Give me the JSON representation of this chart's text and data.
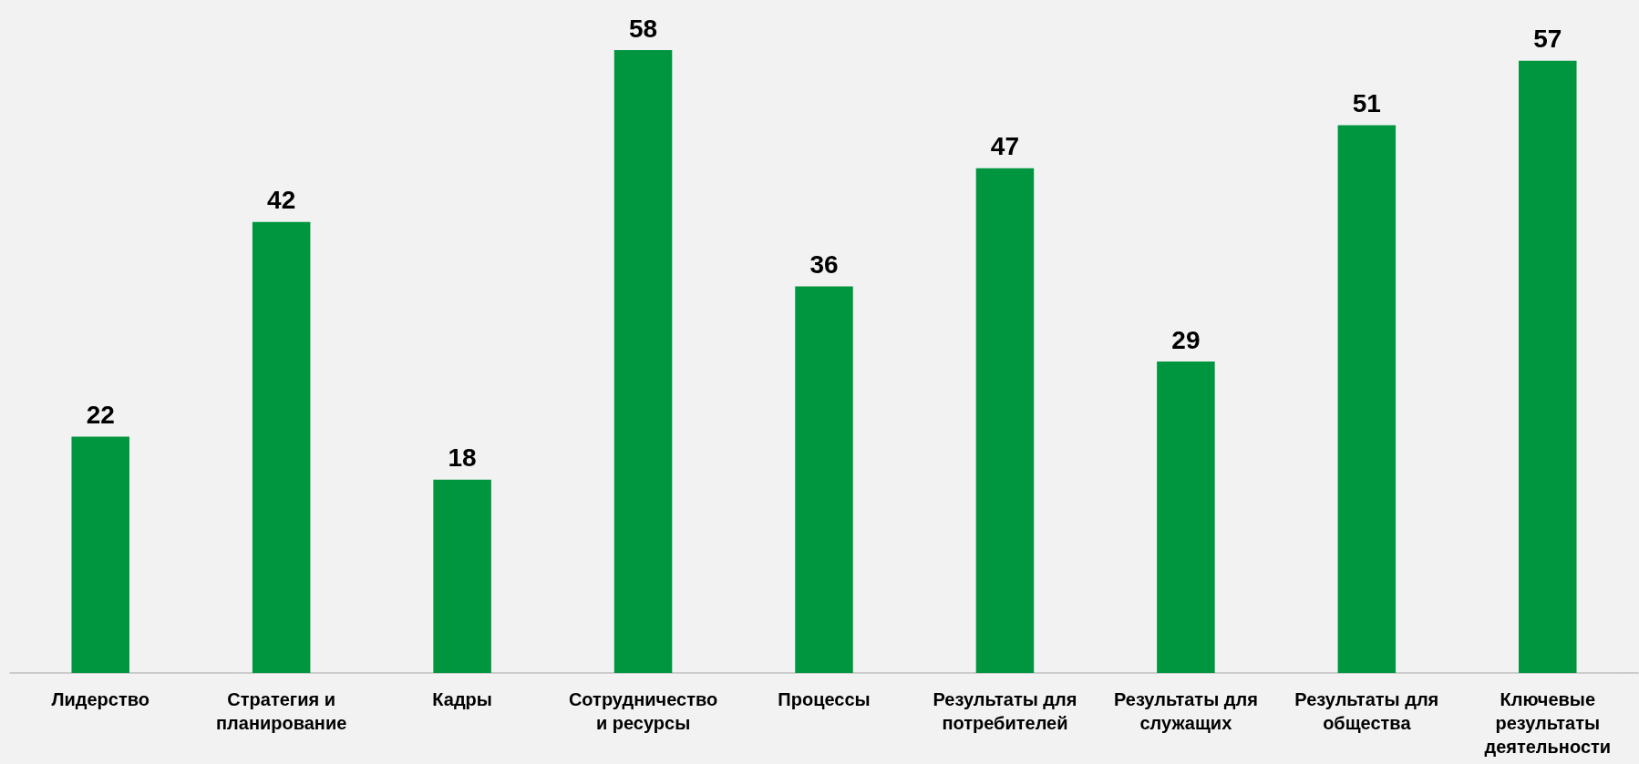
{
  "chart_data": {
    "type": "bar",
    "categories": [
      "Лидерство",
      "Стратегия и планирование",
      "Кадры",
      "Сотрудничество и ресурсы",
      "Процессы",
      "Результаты для потребителей",
      "Результаты для служащих",
      "Результаты для общества",
      "Ключевые результаты деятельности"
    ],
    "values": [
      22,
      42,
      18,
      58,
      36,
      47,
      29,
      51,
      57
    ],
    "color": "#009640",
    "data_labels": true,
    "grid": false
  }
}
